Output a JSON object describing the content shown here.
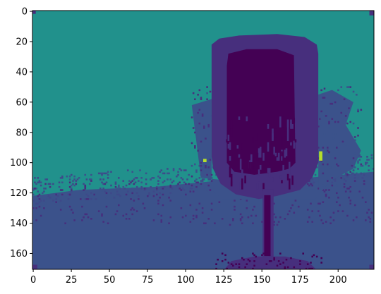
{
  "chart_data": {
    "type": "heatmap",
    "title": "",
    "xlabel": "",
    "ylabel": "",
    "image_width": 224,
    "image_height": 171,
    "xlim": [
      -0.5,
      223.5
    ],
    "ylim": [
      170.5,
      -0.5
    ],
    "y_axis_inverted": true,
    "xticks": [
      0,
      25,
      50,
      75,
      100,
      125,
      150,
      175,
      200
    ],
    "yticks": [
      0,
      20,
      40,
      60,
      80,
      100,
      120,
      140,
      160
    ],
    "colormap": "viridis",
    "grid": false,
    "legend": "none",
    "palette": {
      "background": "#21918c",
      "table": "#3b528b",
      "glass_body": "#472f7d",
      "glass_interior": "#440154",
      "speckle": "#3e4989",
      "highlight": "#b5de2b"
    },
    "regions": [
      {
        "name": "background",
        "color": "#21918c",
        "x": [
          0,
          223
        ],
        "y": [
          0,
          120
        ]
      },
      {
        "name": "table-surface",
        "color": "#3b528b",
        "x": [
          0,
          223
        ],
        "y": [
          105,
          170
        ]
      },
      {
        "name": "glass-bowl",
        "color": "#472f7d",
        "x": [
          117,
          187
        ],
        "y": [
          15,
          125
        ]
      },
      {
        "name": "glass-interior",
        "color": "#440154",
        "x": [
          127,
          172
        ],
        "y": [
          27,
          110
        ]
      },
      {
        "name": "glass-stem",
        "color": "#472f7d",
        "x": [
          150,
          158
        ],
        "y": [
          118,
          166
        ]
      },
      {
        "name": "glass-base",
        "color": "#472f7d",
        "x": [
          125,
          185
        ],
        "y": [
          160,
          170
        ]
      },
      {
        "name": "highlight-right",
        "color": "#b5de2b",
        "x": [
          188,
          190
        ],
        "y": [
          93,
          98
        ]
      },
      {
        "name": "highlight-left",
        "color": "#b5de2b",
        "x": [
          112,
          113
        ],
        "y": [
          98,
          99
        ]
      }
    ]
  }
}
